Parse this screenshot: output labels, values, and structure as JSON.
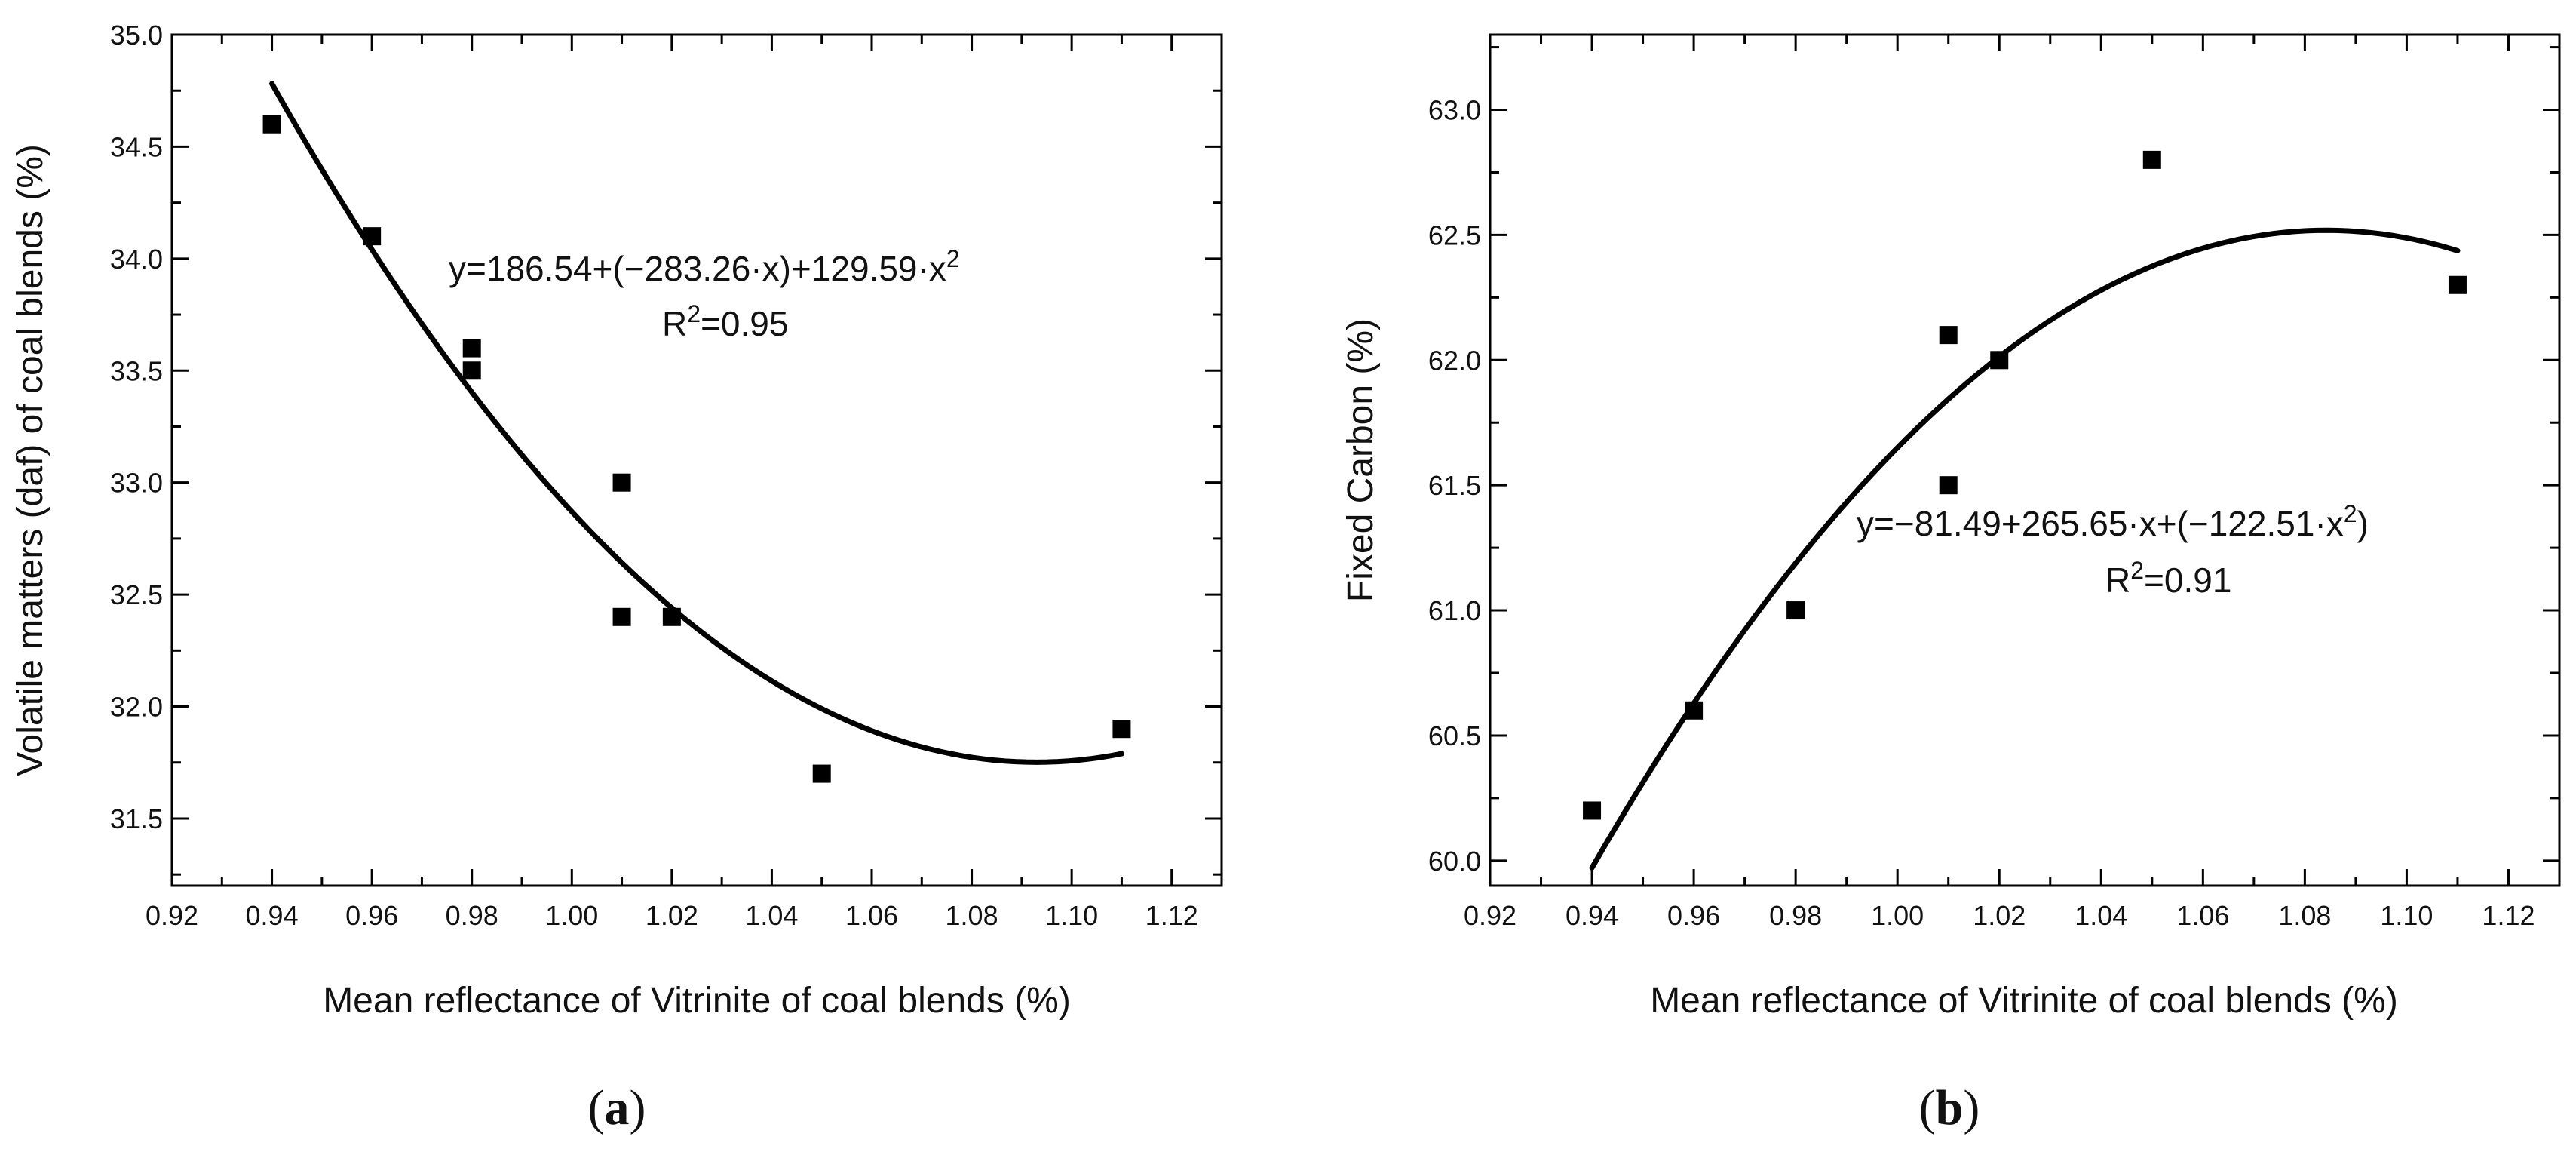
{
  "chart_data": [
    {
      "type": "scatter",
      "panel_label_open": "(",
      "panel_label": "a",
      "panel_label_close": ")",
      "title": "",
      "xlabel": "Mean reflectance of Vitrinite of coal blends (%)",
      "ylabel": "Volatile matters (daf) of coal blends (%)",
      "xlim": [
        0.92,
        1.13
      ],
      "ylim": [
        31.2,
        35.0
      ],
      "x_ticks": [
        "0.92",
        "0.94",
        "0.96",
        "0.98",
        "1.00",
        "1.02",
        "1.04",
        "1.06",
        "1.08",
        "1.10",
        "1.12"
      ],
      "y_ticks": [
        "31.5",
        "32.0",
        "32.5",
        "33.0",
        "33.5",
        "34.0",
        "34.5",
        "35.0"
      ],
      "series": [
        {
          "name": "data",
          "x": [
            0.94,
            0.96,
            0.98,
            0.98,
            1.01,
            1.01,
            1.02,
            1.05,
            1.11
          ],
          "y": [
            34.6,
            34.1,
            33.6,
            33.5,
            33.0,
            32.4,
            32.4,
            31.7,
            31.9
          ]
        }
      ],
      "fit": {
        "coefficients": [
          186.54,
          -283.26,
          129.59
        ],
        "x_range": [
          0.94,
          1.11
        ],
        "equation_text_prefix": "y=186.54+(−283.26·x)+129.59·x",
        "equation_text_sup": "2",
        "equation_text_suffix": "",
        "r2_text_prefix": "R",
        "r2_text_sup": "2",
        "r2_text_value": "=0.95"
      }
    },
    {
      "type": "scatter",
      "panel_label_open": "(",
      "panel_label": "b",
      "panel_label_close": ")",
      "title": "",
      "xlabel": "Mean reflectance of Vitrinite of coal blends (%)",
      "ylabel": "Fixed Carbon (%)",
      "xlim": [
        0.92,
        1.13
      ],
      "ylim": [
        59.9,
        63.3
      ],
      "x_ticks": [
        "0.92",
        "0.94",
        "0.96",
        "0.98",
        "1.00",
        "1.02",
        "1.04",
        "1.06",
        "1.08",
        "1.10",
        "1.12"
      ],
      "y_ticks": [
        "60.0",
        "60.5",
        "61.0",
        "61.5",
        "62.0",
        "62.5",
        "63.0"
      ],
      "series": [
        {
          "name": "data",
          "x": [
            0.94,
            0.96,
            0.98,
            1.01,
            1.01,
            1.02,
            1.05,
            1.11
          ],
          "y": [
            60.2,
            60.6,
            61.0,
            62.1,
            61.5,
            62.0,
            62.8,
            62.3
          ]
        }
      ],
      "fit": {
        "coefficients": [
          -81.49,
          265.65,
          -122.51
        ],
        "x_range": [
          0.94,
          1.11
        ],
        "equation_text_prefix": "y=−81.49+265.65·x+(−122.51·x",
        "equation_text_sup": "2",
        "equation_text_suffix": ")",
        "r2_text_prefix": "R",
        "r2_text_sup": "2",
        "r2_text_value": "=0.91"
      }
    }
  ]
}
